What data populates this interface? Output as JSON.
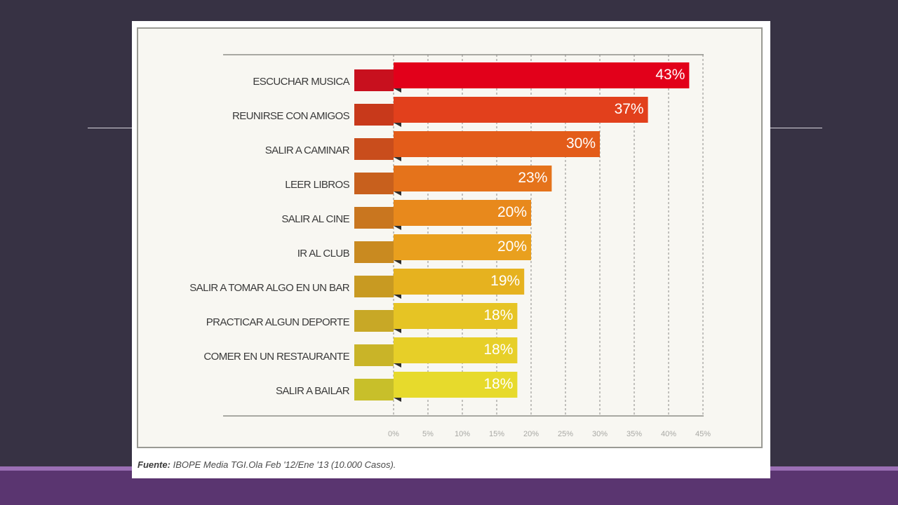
{
  "source": {
    "label": "Fuente:",
    "text": "IBOPE Media TGI.Ola Feb '12/Ene '13 (10.000 Casos)."
  },
  "chart_data": {
    "type": "bar",
    "orientation": "horizontal",
    "title": "",
    "xlabel": "",
    "ylabel": "",
    "categories": [
      "ESCUCHAR MUSICA",
      "REUNIRSE CON AMIGOS",
      "SALIR A CAMINAR",
      "LEER LIBROS",
      "SALIR AL CINE",
      "IR AL CLUB",
      "SALIR A TOMAR ALGO EN UN BAR",
      "PRACTICAR ALGUN DEPORTE",
      "COMER EN UN RESTAURANTE",
      "SALIR A BAILAR"
    ],
    "values": [
      43,
      37,
      30,
      23,
      20,
      20,
      19,
      18,
      18,
      18
    ],
    "value_labels": [
      "43%",
      "37%",
      "30%",
      "23%",
      "20%",
      "20%",
      "19%",
      "18%",
      "18%",
      "18%"
    ],
    "colors": [
      "#e2001a",
      "#e2401c",
      "#e35c1a",
      "#e5731b",
      "#e8891c",
      "#e9a01e",
      "#e6b21f",
      "#e6c424",
      "#e7cf28",
      "#e7da2c"
    ],
    "tab_colors": [
      "#c8101e",
      "#c8391b",
      "#c94d1c",
      "#c8601d",
      "#c9761f",
      "#c98a20",
      "#c89a22",
      "#c8a826",
      "#c9b428",
      "#c8bf2a"
    ],
    "xlim": [
      0,
      45
    ],
    "xticks": [
      0,
      5,
      10,
      15,
      20,
      25,
      30,
      35,
      40,
      45
    ],
    "xtick_labels": [
      "0%",
      "5%",
      "10%",
      "15%",
      "20%",
      "25%",
      "30%",
      "35%",
      "40%",
      "45%"
    ],
    "grid": true,
    "legend": "none"
  }
}
